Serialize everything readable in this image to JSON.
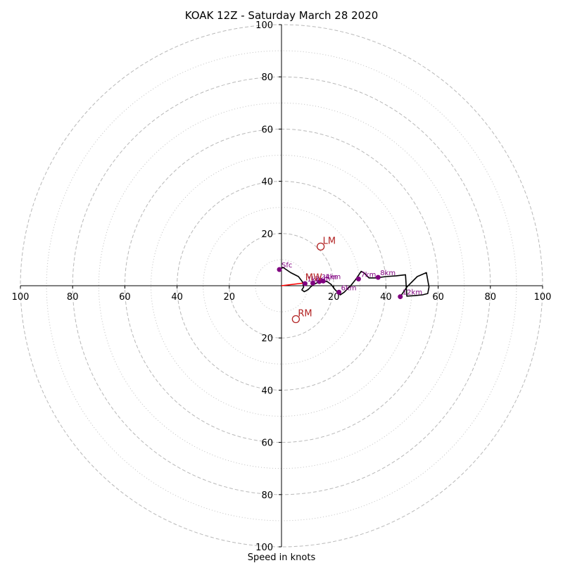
{
  "chart_data": {
    "type": "line",
    "title": "KOAK 12Z - Saturday March 28 2020",
    "xlabel": "Speed in knots",
    "ylabel": "",
    "xlim": [
      -100,
      100
    ],
    "ylim": [
      -100,
      100
    ],
    "ring_major": [
      20,
      40,
      60,
      80,
      100
    ],
    "ring_minor": [
      10,
      30,
      50,
      70,
      90
    ],
    "x_ticks": [
      {
        "value": -100,
        "label": "100"
      },
      {
        "value": -80,
        "label": "80"
      },
      {
        "value": -60,
        "label": "60"
      },
      {
        "value": -40,
        "label": "40"
      },
      {
        "value": -20,
        "label": "20"
      },
      {
        "value": 20,
        "label": "20"
      },
      {
        "value": 40,
        "label": "40"
      },
      {
        "value": 60,
        "label": "60"
      },
      {
        "value": 80,
        "label": "80"
      },
      {
        "value": 100,
        "label": "100"
      }
    ],
    "y_ticks": [
      {
        "value": 100,
        "label": "100"
      },
      {
        "value": 80,
        "label": "80"
      },
      {
        "value": 60,
        "label": "60"
      },
      {
        "value": 40,
        "label": "40"
      },
      {
        "value": 20,
        "label": "20"
      },
      {
        "value": -20,
        "label": "20"
      },
      {
        "value": -40,
        "label": "40"
      },
      {
        "value": -60,
        "label": "60"
      },
      {
        "value": -80,
        "label": "80"
      },
      {
        "value": -100,
        "label": "100"
      }
    ],
    "grid": true,
    "hodograph": {
      "color": "#000000",
      "points": [
        [
          -0.8,
          6.2
        ],
        [
          0.6,
          7.0
        ],
        [
          3.5,
          5.0
        ],
        [
          6.5,
          3.5
        ],
        [
          8.0,
          1.5
        ],
        [
          8.5,
          -0.5
        ],
        [
          7.8,
          -1.6
        ],
        [
          8.7,
          -2.3
        ],
        [
          10.2,
          -1.5
        ],
        [
          11.2,
          -0.4
        ],
        [
          12.5,
          0.6
        ],
        [
          14.0,
          1.3
        ],
        [
          15.5,
          1.7
        ],
        [
          17.5,
          1.6
        ],
        [
          19.0,
          0.5
        ],
        [
          20.5,
          -1.5
        ],
        [
          22.5,
          -3.5
        ],
        [
          24.0,
          -2.5
        ],
        [
          26.5,
          0.0
        ],
        [
          28.5,
          2.5
        ],
        [
          30.5,
          5.5
        ],
        [
          31.5,
          5.0
        ],
        [
          33.5,
          3.0
        ],
        [
          36.0,
          3.0
        ],
        [
          40.0,
          3.5
        ],
        [
          44.0,
          3.8
        ],
        [
          47.5,
          4.2
        ],
        [
          48.0,
          -4.0
        ],
        [
          51.0,
          -3.8
        ],
        [
          54.0,
          -3.5
        ],
        [
          56.0,
          -3.0
        ],
        [
          56.5,
          -0.5
        ],
        [
          55.5,
          5.0
        ],
        [
          52.0,
          3.5
        ],
        [
          49.5,
          1.0
        ],
        [
          48.0,
          -0.5
        ],
        [
          45.5,
          -4.2
        ]
      ]
    },
    "height_markers": [
      {
        "label": "Sfc",
        "u": -0.8,
        "v": 6.2
      },
      {
        "label": "1km",
        "u": 9.0,
        "v": 0.8
      },
      {
        "label": "2km",
        "u": 12.0,
        "v": 1.0
      },
      {
        "label": "3km",
        "u": 14.5,
        "v": 1.6
      },
      {
        "label": "4km",
        "u": 16.0,
        "v": 1.8
      },
      {
        "label": "6km",
        "u": 22.0,
        "v": -2.5
      },
      {
        "label": "7km",
        "u": 29.5,
        "v": 2.6
      },
      {
        "label": "8km",
        "u": 37.0,
        "v": 3.2
      },
      {
        "label": "12km",
        "u": 45.5,
        "v": -4.2
      }
    ],
    "storm_motions": [
      {
        "label": "LM",
        "u": 15.0,
        "v": 15.0
      },
      {
        "label": "RM",
        "u": 5.5,
        "v": -12.8
      },
      {
        "label": "MW",
        "u": 8.3,
        "v": 1.0
      }
    ],
    "mean_wind_vector": {
      "u": 8.3,
      "v": 1.0,
      "color": "#ff0000"
    }
  }
}
